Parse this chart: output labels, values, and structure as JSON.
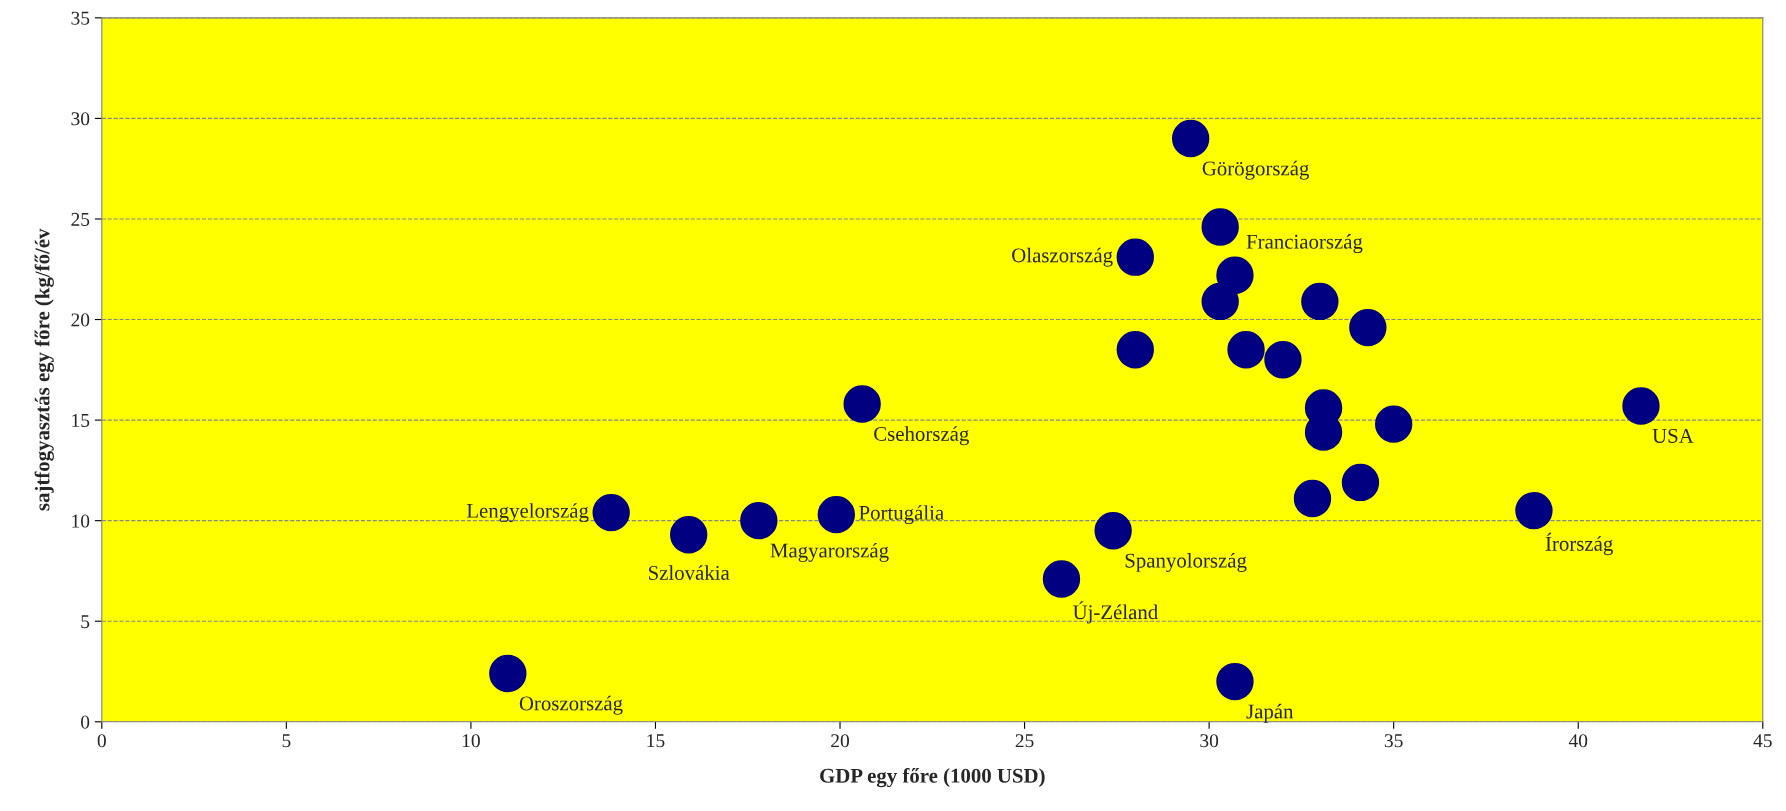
{
  "chart_data": {
    "type": "scatter",
    "xlabel": "GDP egy főre (1000 USD)",
    "ylabel": "sajtfogyasztás egy főre (kg/fő/év",
    "xlim": [
      0,
      45
    ],
    "ylim": [
      0,
      35
    ],
    "xticks": [
      0,
      5,
      10,
      15,
      20,
      25,
      30,
      35,
      40,
      45
    ],
    "yticks": [
      0,
      5,
      10,
      15,
      20,
      25,
      30,
      35
    ],
    "grid": "y",
    "marker": "circle",
    "series": [
      {
        "color": "#000080",
        "x": [
          11.0,
          13.8,
          15.9,
          17.8,
          19.9,
          20.6,
          26.0,
          27.4,
          28.0,
          28.0,
          29.5,
          30.3,
          30.7,
          30.3,
          31.0,
          32.0,
          33.0,
          34.3,
          33.1,
          33.1,
          35.0,
          32.8,
          34.1,
          38.8,
          41.7,
          30.7
        ],
        "values": [
          2.4,
          10.4,
          9.3,
          10.0,
          10.3,
          15.8,
          7.1,
          9.5,
          23.1,
          18.5,
          29.0,
          24.6,
          22.2,
          20.9,
          18.5,
          18.0,
          20.9,
          19.6,
          15.6,
          14.4,
          14.8,
          11.1,
          11.9,
          10.5,
          15.7,
          2.0
        ]
      }
    ],
    "annotations": [
      {
        "text": "Görögország",
        "x": 29.5,
        "y": 29.0
      },
      {
        "text": "Franciaország",
        "x": 30.7,
        "y": 22.2
      },
      {
        "text": "Olaszország",
        "x": 28.0,
        "y": 23.1
      },
      {
        "text": "Csehország",
        "x": 20.6,
        "y": 15.8
      },
      {
        "text": "USA",
        "x": 41.7,
        "y": 15.7
      },
      {
        "text": "Lengyelország",
        "x": 13.8,
        "y": 10.4
      },
      {
        "text": "Magyarország",
        "x": 17.8,
        "y": 10.0
      },
      {
        "text": "Írország",
        "x": 38.8,
        "y": 10.5
      },
      {
        "text": "Szlovákia",
        "x": 15.9,
        "y": 9.3
      },
      {
        "text": "Portugália",
        "x": 19.9,
        "y": 10.3
      },
      {
        "text": "Spanyolország",
        "x": 27.4,
        "y": 9.5
      },
      {
        "text": "Új-Zéland",
        "x": 26.0,
        "y": 7.1
      },
      {
        "text": "Oroszország",
        "x": 11.0,
        "y": 2.4
      },
      {
        "text": "Japán",
        "x": 30.7,
        "y": 2.0
      }
    ]
  }
}
